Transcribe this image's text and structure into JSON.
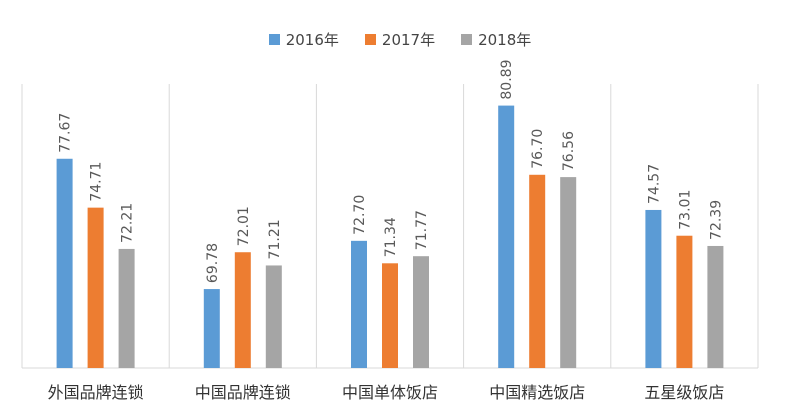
{
  "chart_data": {
    "type": "bar",
    "categories": [
      "外国品牌连锁",
      "中国品牌连锁",
      "中国单体饭店",
      "中国精选饭店",
      "五星级饭店"
    ],
    "series": [
      {
        "name": "2016年",
        "color": "#5b9bd5",
        "values": [
          77.67,
          69.78,
          72.7,
          80.89,
          74.57
        ],
        "labels": [
          "77.67",
          "69.78",
          "72.70",
          "80.89",
          "74.57"
        ]
      },
      {
        "name": "2017年",
        "color": "#ed7d31",
        "values": [
          74.71,
          72.01,
          71.34,
          76.7,
          73.01
        ],
        "labels": [
          "74.71",
          "72.01",
          "71.34",
          "76.70",
          "73.01"
        ]
      },
      {
        "name": "2018年",
        "color": "#a5a5a5",
        "values": [
          72.21,
          71.21,
          71.77,
          76.56,
          72.39
        ],
        "labels": [
          "72.21",
          "71.21",
          "71.77",
          "76.56",
          "72.39"
        ]
      }
    ],
    "ylim": [
      65,
      82.5
    ],
    "legend_position": "top-center",
    "grid": false
  }
}
